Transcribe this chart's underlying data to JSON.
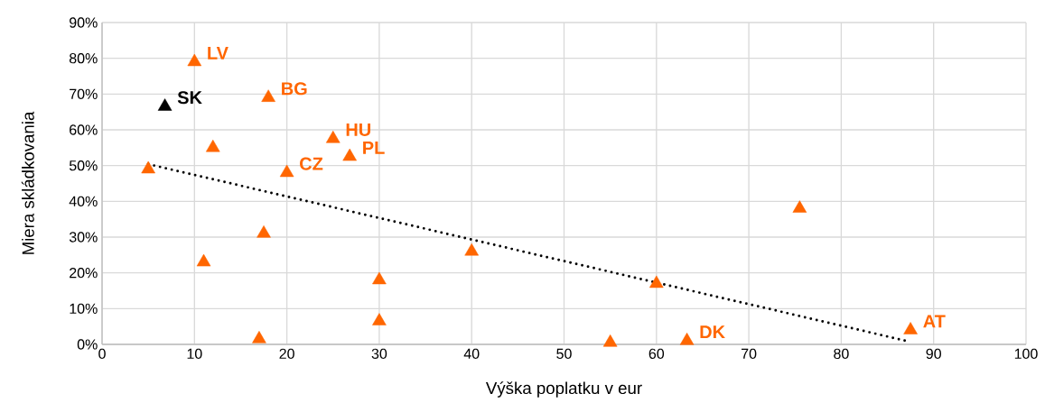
{
  "chart_data": {
    "type": "scatter",
    "xlabel": "Výška poplatku v eur",
    "ylabel": "Miera skládkovania",
    "xlim": [
      0,
      100
    ],
    "xticks": [
      0,
      10,
      20,
      30,
      40,
      50,
      60,
      70,
      80,
      90,
      100
    ],
    "ylim": [
      0,
      90
    ],
    "yticks": [
      {
        "value": 0,
        "label": "0%"
      },
      {
        "value": 10,
        "label": "10%"
      },
      {
        "value": 20,
        "label": "20%"
      },
      {
        "value": 30,
        "label": "30%"
      },
      {
        "value": 40,
        "label": "40%"
      },
      {
        "value": 50,
        "label": "50%"
      },
      {
        "value": 60,
        "label": "60%"
      },
      {
        "value": 70,
        "label": "70%"
      },
      {
        "value": 80,
        "label": "80%"
      },
      {
        "value": 90,
        "label": "90%"
      }
    ],
    "grid": true,
    "marker": "triangle",
    "series": [
      {
        "color": "#ff6600",
        "x": [
          10,
          18,
          25,
          26.8,
          12,
          5,
          20,
          17.5,
          11,
          30,
          30,
          17,
          40,
          60,
          75.5,
          55,
          63.3,
          87.5
        ],
        "values": [
          79,
          69,
          57.5,
          52.5,
          55,
          49,
          48,
          31,
          23,
          18,
          6.5,
          1.5,
          26,
          17,
          38,
          0.5,
          1,
          4
        ]
      },
      {
        "color": "#000000",
        "x": [
          6.8
        ],
        "values": [
          66.5
        ]
      },
      {
        "type": "line",
        "color": "#000000",
        "line_style": "dotted",
        "marker": "none",
        "x": [
          5,
          87
        ],
        "values": [
          50.4,
          1.0
        ]
      }
    ],
    "annotations": [
      {
        "text": "LV",
        "x": 10,
        "y": 79
      },
      {
        "text": "SK",
        "x": 6.8,
        "y": 66.5
      },
      {
        "text": "BG",
        "x": 18,
        "y": 69
      },
      {
        "text": "HU",
        "x": 25,
        "y": 57.5
      },
      {
        "text": "PL",
        "x": 26.8,
        "y": 52.5
      },
      {
        "text": "CZ",
        "x": 20,
        "y": 48
      },
      {
        "text": "DK",
        "x": 63.3,
        "y": 1
      },
      {
        "text": "AT",
        "x": 87.5,
        "y": 4
      }
    ]
  }
}
